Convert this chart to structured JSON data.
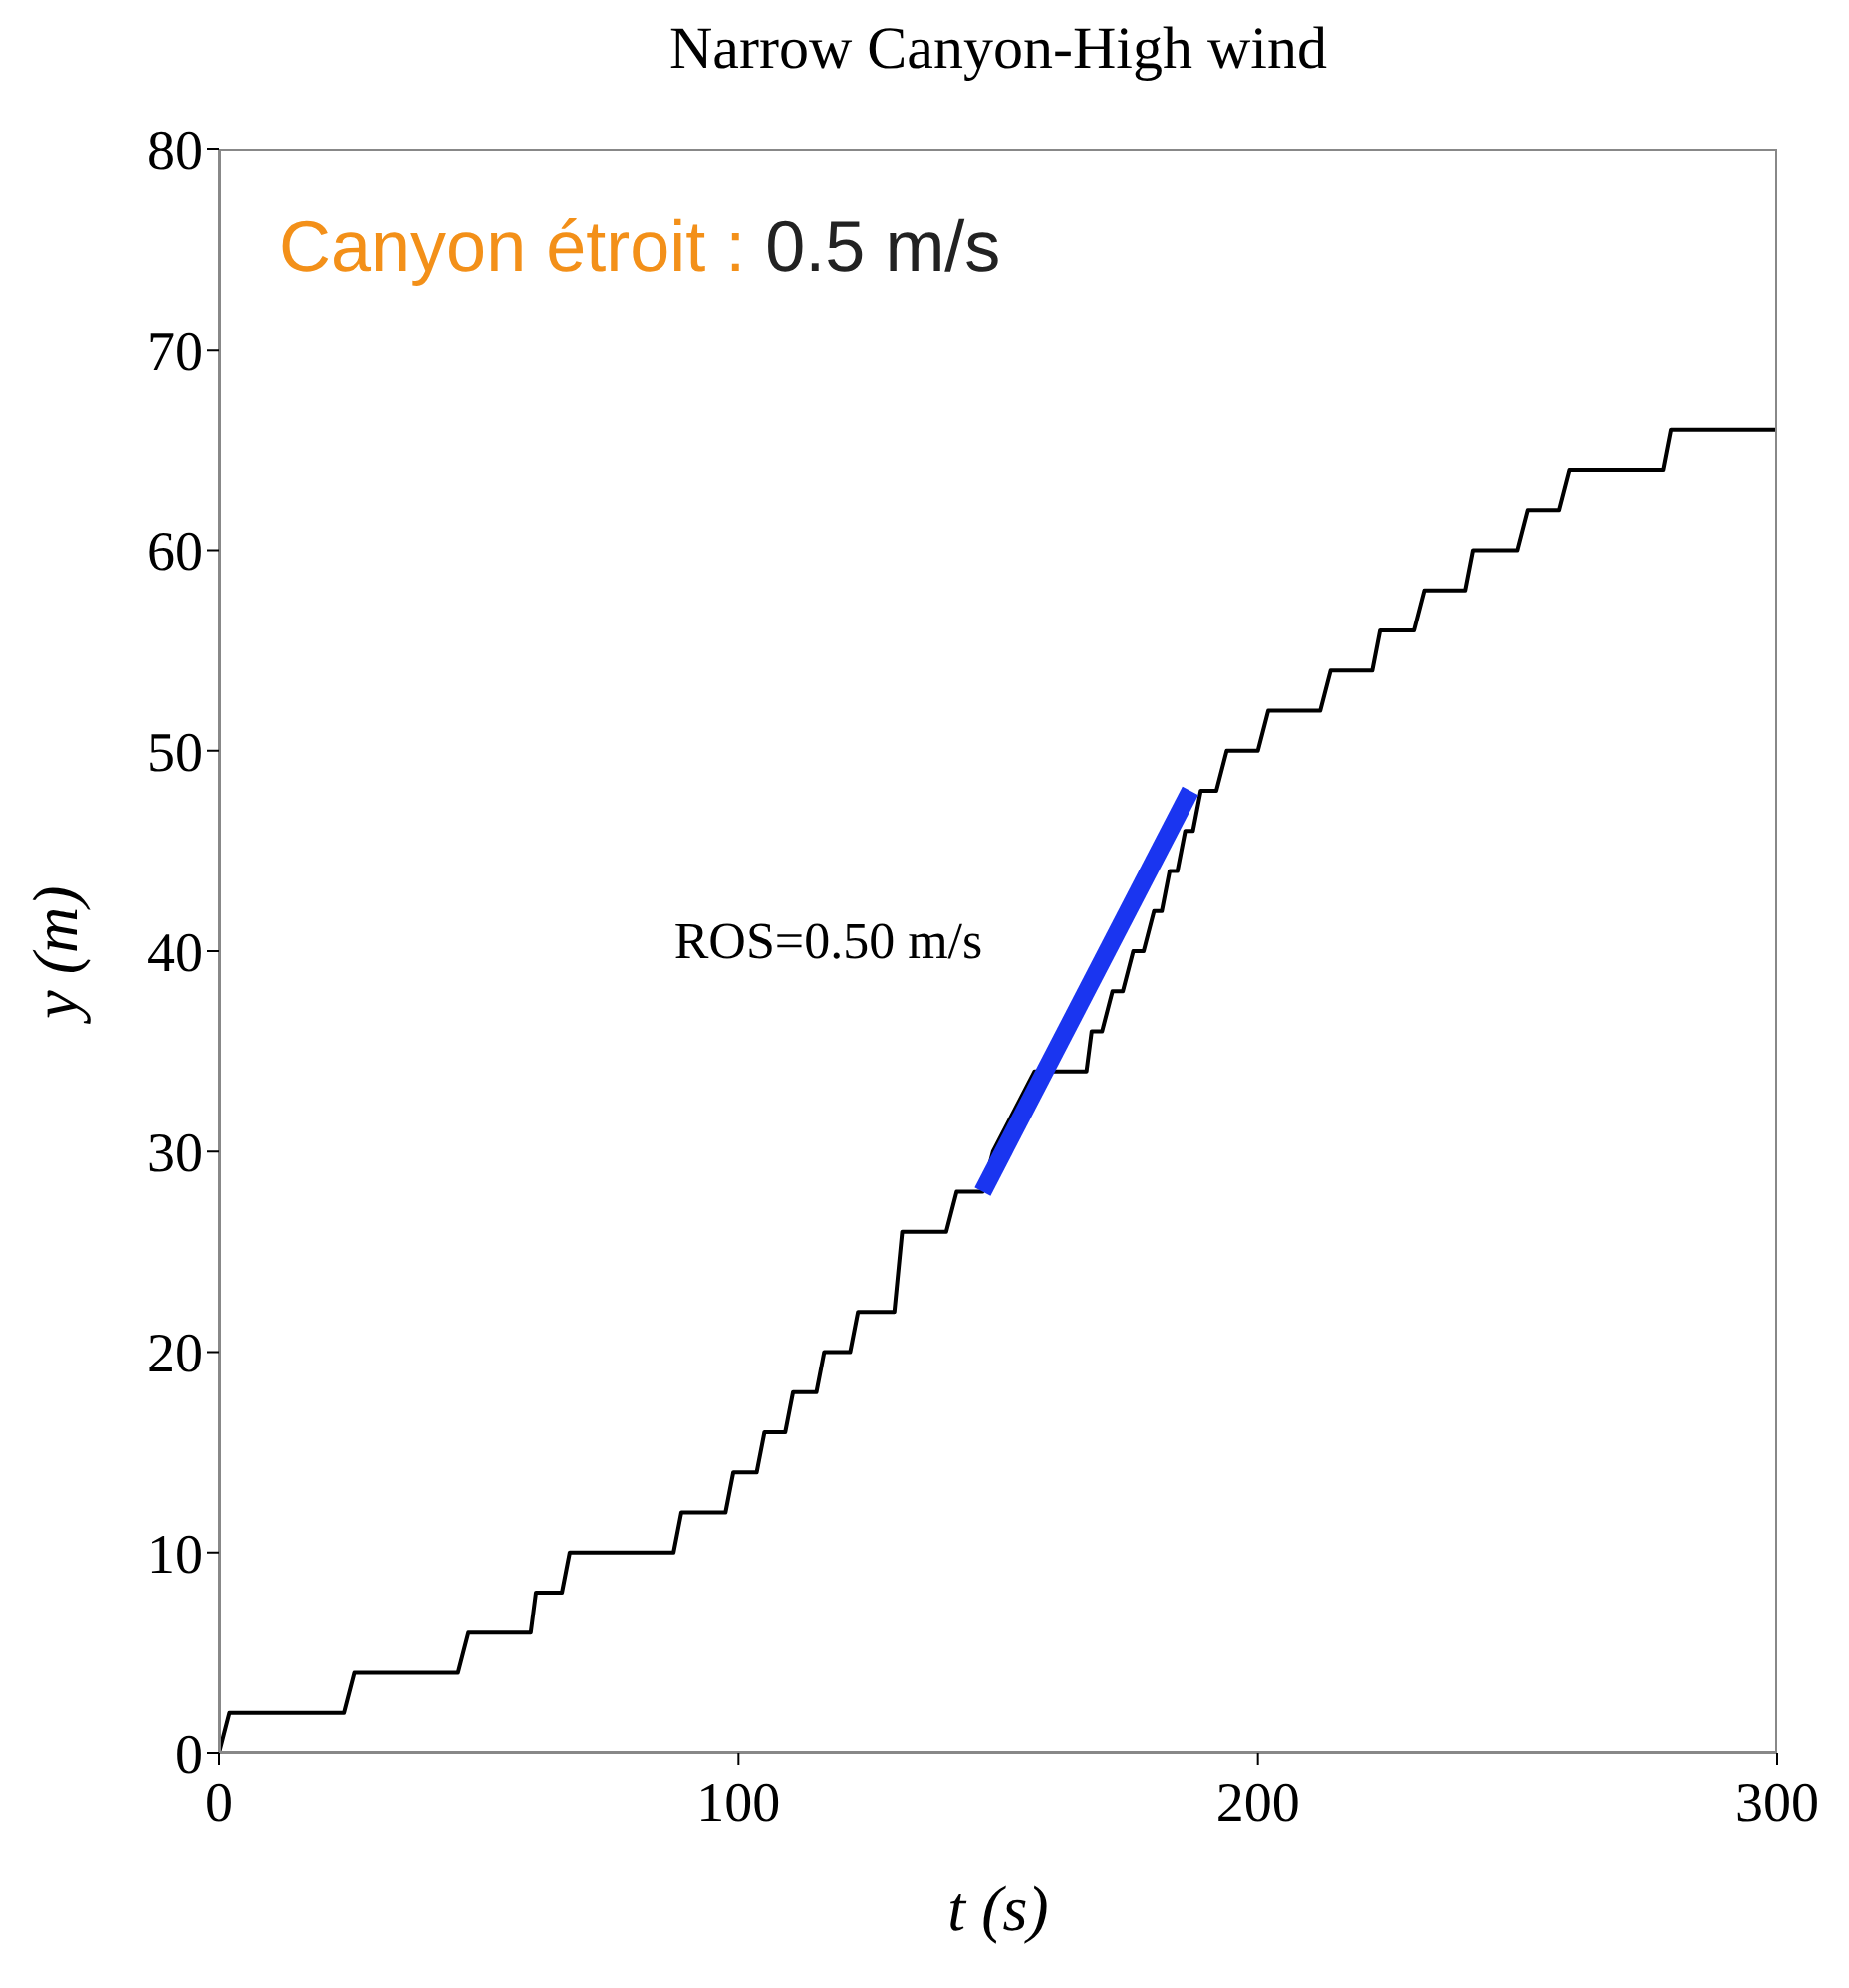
{
  "chart_data": {
    "type": "line",
    "title": "Narrow Canyon-High wind",
    "xlabel": "t (s)",
    "ylabel": "y (m)",
    "annotations": [
      "Canyon étroit :",
      "0.5 m/s",
      {
        "text": "ROS=0.50 m/s",
        "x": 170,
        "y": 40
      }
    ],
    "xlim": [
      0,
      300
    ],
    "xticks": [
      0,
      100,
      200,
      300
    ],
    "ylim": [
      0,
      80
    ],
    "yticks": [
      0,
      10,
      20,
      30,
      40,
      50,
      60,
      70,
      80
    ],
    "grid": false,
    "legend": false,
    "marker": "none",
    "series": [
      {
        "color": "#000000",
        "x": [
          0,
          2,
          24,
          26,
          46,
          48,
          60,
          61,
          66,
          67.5,
          87.5,
          89,
          97.5,
          99,
          103.5,
          105,
          109,
          110.5,
          115,
          116.5,
          121.5,
          123,
          130,
          131.5,
          140,
          142,
          147,
          149,
          151,
          153,
          155,
          157,
          160,
          162,
          167,
          168,
          170,
          172,
          174,
          176,
          178,
          180,
          181.5,
          183,
          184.5,
          186,
          187.5,
          189,
          192,
          194,
          200,
          202,
          212,
          214,
          222,
          223.5,
          230,
          232,
          240,
          241.5,
          250,
          252,
          258,
          260,
          278,
          279.5,
          300
        ],
        "values": [
          0,
          2,
          2,
          4,
          4,
          6,
          6,
          8,
          8,
          10,
          10,
          12,
          12,
          14,
          14,
          16,
          16,
          18,
          18,
          20,
          20,
          22,
          22,
          26,
          26,
          28,
          28,
          30,
          null,
          32,
          null,
          34,
          34,
          34,
          34,
          36,
          36,
          38,
          38,
          40,
          40,
          42,
          42,
          44,
          44,
          46,
          46,
          48,
          48,
          50,
          50,
          52,
          52,
          54,
          54,
          56,
          56,
          58,
          58,
          60,
          60,
          62,
          62,
          64,
          64,
          66,
          66
        ]
      },
      {
        "color": "#1a35f0",
        "x": [
          147,
          187
        ],
        "values": [
          28,
          48
        ]
      }
    ]
  }
}
